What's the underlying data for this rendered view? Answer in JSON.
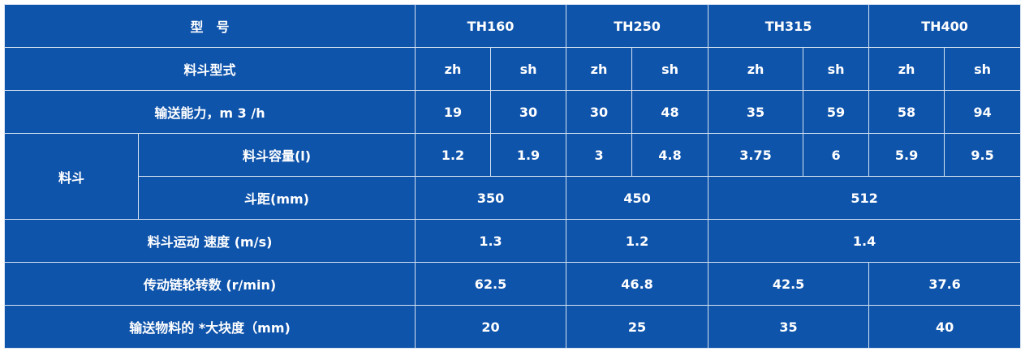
{
  "colors": {
    "background": "#0f54ab",
    "border": "#d6e2f0",
    "text": "#ffffff"
  },
  "rows": [
    {
      "label": "型　号",
      "cells": [
        "TH160",
        "TH250",
        "TH315",
        "TH400"
      ]
    },
    {
      "label": "料斗型式",
      "cells": [
        "zh",
        "sh",
        "zh",
        "sh",
        "zh",
        "sh",
        "zh",
        "sh"
      ]
    },
    {
      "label": "输送能力，m 3 /h",
      "cells": [
        "19",
        "30",
        "30",
        "48",
        "35",
        "59",
        "58",
        "94"
      ]
    },
    {
      "group": "料斗",
      "label": "料斗容量(l)",
      "cells": [
        "1.2",
        "1.9",
        "3",
        "4.8",
        "3.75",
        "6",
        "5.9",
        "9.5"
      ]
    },
    {
      "label": "斗距(mm)",
      "cells": [
        "350",
        "450",
        "512"
      ]
    },
    {
      "label": "料斗运动 速度 (m/s)",
      "cells": [
        "1.3",
        "1.2",
        "1.4"
      ]
    },
    {
      "label": "传动链轮转数 (r/min)",
      "cells": [
        "62.5",
        "46.8",
        "42.5",
        "37.6"
      ]
    },
    {
      "label": "输送物料的 *大块度（mm)",
      "cells": [
        "20",
        "25",
        "35",
        "40"
      ]
    }
  ]
}
